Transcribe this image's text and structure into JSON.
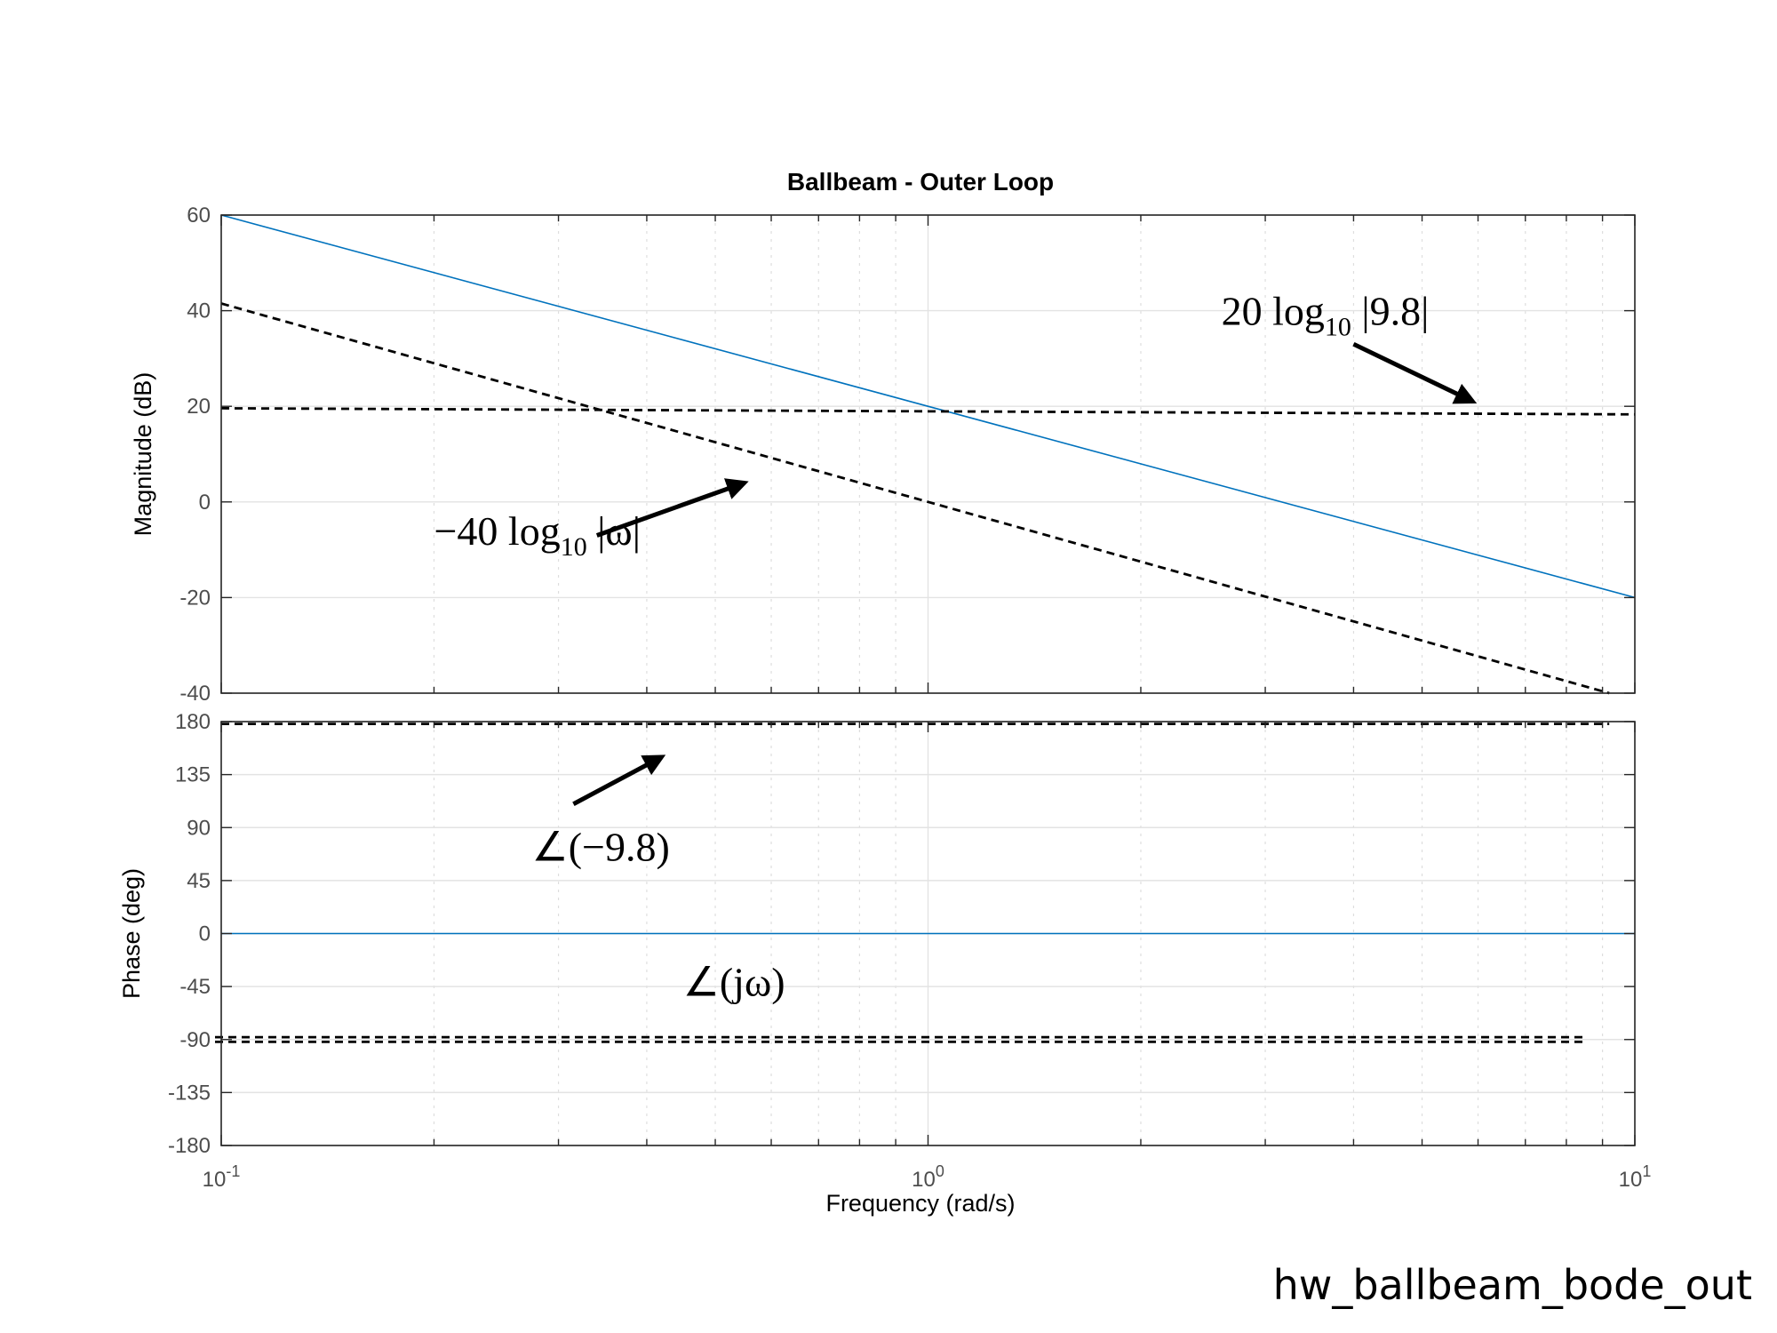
{
  "chart_data": {
    "type": "line",
    "title": "Ballbeam - Outer Loop",
    "xlabel": "Frequency  (rad/s)",
    "xscale": "log",
    "xlim": [
      0.1,
      10
    ],
    "x_ticks": [
      {
        "value": 0.1,
        "base": "10",
        "exp": "-1"
      },
      {
        "value": 1,
        "base": "10",
        "exp": "0"
      },
      {
        "value": 10,
        "base": "10",
        "exp": "1"
      }
    ],
    "grid": true,
    "panels": [
      {
        "id": "magnitude",
        "ylabel": "Magnitude (dB)",
        "ylim": [
          -40,
          60
        ],
        "yticks": [
          60,
          40,
          20,
          0,
          -20,
          -40
        ],
        "series": [
          {
            "style": "solid",
            "color": "#0072BD",
            "x": [
              0.1,
              10
            ],
            "y": [
              60,
              -20
            ]
          },
          {
            "style": "dashed",
            "color": "#000000",
            "x": [
              0.1,
              9.2
            ],
            "y": [
              41.5,
              -40
            ]
          },
          {
            "style": "dashed",
            "color": "#000000",
            "x": [
              0.1,
              10
            ],
            "y": [
              19.6,
              18.3
            ]
          }
        ],
        "annotations": [
          {
            "id": "mag-omega-label",
            "parts": [
              "−40 log",
              "10",
              " |ω|"
            ],
            "x": 0.2,
            "y": -9,
            "arrow": {
              "from": [
                0.34,
                -7
              ],
              "to": [
                0.55,
                4
              ]
            }
          },
          {
            "id": "mag-const-label",
            "parts": [
              "20 log",
              "10",
              " |9.8|"
            ],
            "x": 2.6,
            "y": 37,
            "arrow": {
              "from": [
                4.0,
                33
              ],
              "to": [
                5.9,
                21
              ]
            }
          }
        ]
      },
      {
        "id": "phase",
        "ylabel": "Phase (deg)",
        "ylim": [
          -180,
          180
        ],
        "yticks": [
          180,
          135,
          90,
          45,
          0,
          -45,
          -90,
          -135,
          -180
        ],
        "series": [
          {
            "style": "solid",
            "color": "#0072BD",
            "x": [
              0.1,
              10
            ],
            "y": [
              0,
              0
            ]
          },
          {
            "style": "dashed",
            "color": "#000000",
            "x": [
              0.1,
              9.2
            ],
            "y": [
              178,
              178
            ]
          },
          {
            "style": "dashed",
            "color": "#000000",
            "x": [
              0.098,
              8.5
            ],
            "y": [
              -88,
              -88
            ]
          },
          {
            "style": "dashed",
            "color": "#000000",
            "x": [
              0.098,
              8.5
            ],
            "y": [
              -92,
              -92
            ]
          }
        ],
        "annotations": [
          {
            "id": "phase-const-label",
            "parts": [
              "∠(−9.8)"
            ],
            "x": 0.275,
            "y": 62,
            "arrow": {
              "from": [
                0.315,
                110
              ],
              "to": [
                0.42,
                150
              ]
            }
          },
          {
            "id": "phase-jomega-label",
            "parts": [
              "∠(jω)"
            ],
            "x": 0.45,
            "y": -53,
            "arrow": null
          }
        ]
      }
    ]
  },
  "footer": {
    "label": "hw_ballbeam_bode_out"
  }
}
